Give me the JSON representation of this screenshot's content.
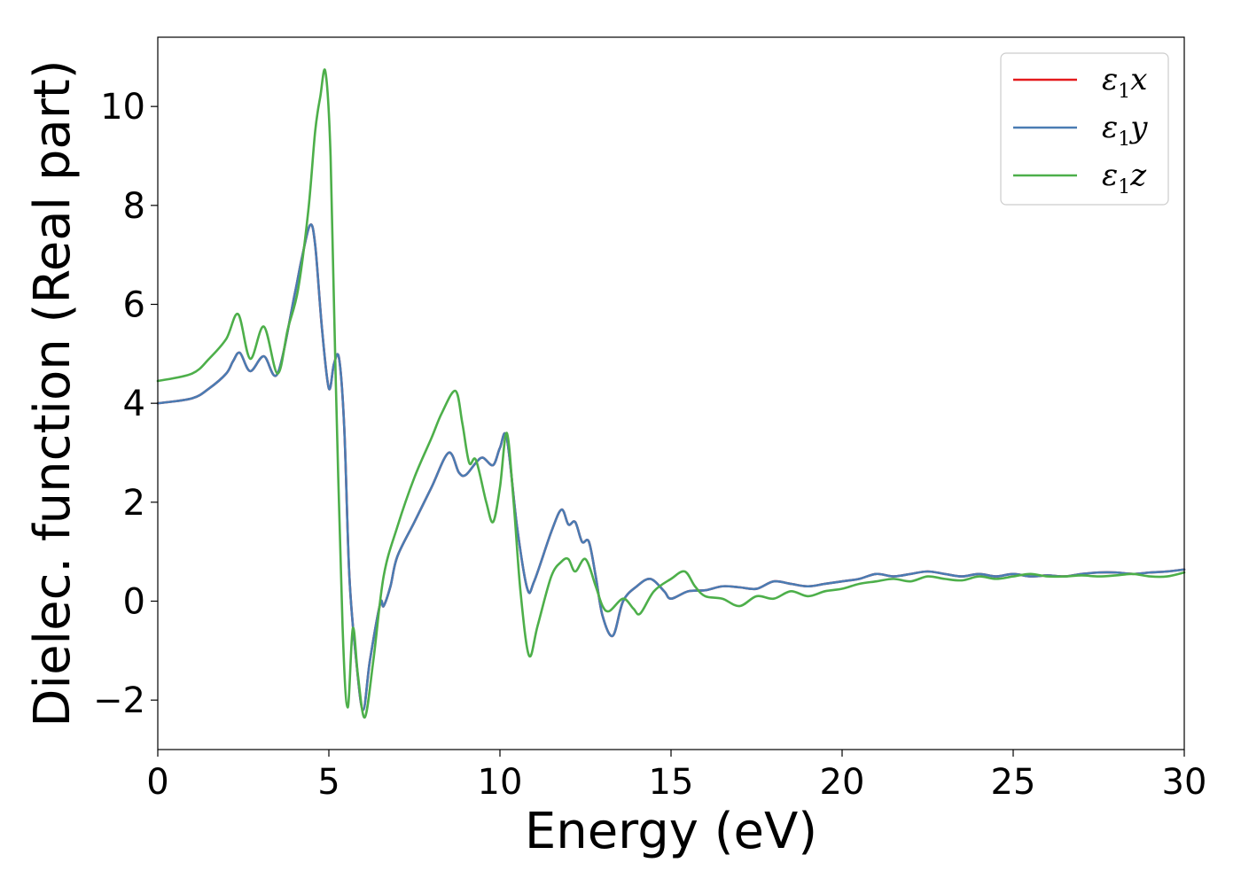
{
  "chart_data": {
    "type": "line",
    "title": "",
    "xlabel": "Energy (eV)",
    "ylabel": "Dielec. function (Real part)",
    "xlim": [
      0,
      30
    ],
    "ylim": [
      -3,
      11.4
    ],
    "xticks": [
      0,
      5,
      10,
      15,
      20,
      25,
      30
    ],
    "yticks": [
      -2,
      0,
      2,
      4,
      6,
      8,
      10
    ],
    "xtick_labels": [
      "0",
      "5",
      "10",
      "15",
      "20",
      "25",
      "30"
    ],
    "ytick_labels": [
      "−2",
      "0",
      "2",
      "4",
      "6",
      "8",
      "10"
    ],
    "grid": false,
    "legend": {
      "position": "top-right"
    },
    "series": [
      {
        "name": "ε₁x",
        "legend_base": "ε",
        "legend_sub": "1",
        "legend_var": "x",
        "color": "#e41a1c",
        "x": [
          0,
          1,
          1.5,
          2,
          2.2,
          2.4,
          2.7,
          3.1,
          3.5,
          4,
          4.2,
          4.45,
          4.6,
          4.8,
          5,
          5.15,
          5.3,
          5.45,
          5.6,
          5.8,
          6,
          6.2,
          6.5,
          6.6,
          6.8,
          7,
          7.5,
          8,
          8.5,
          8.8,
          9,
          9.3,
          9.5,
          9.8,
          10,
          10.2,
          10.5,
          10.8,
          11,
          11.5,
          11.8,
          12,
          12.2,
          12.4,
          12.6,
          12.8,
          13,
          13.3,
          13.6,
          14,
          14.4,
          14.8,
          15,
          15.5,
          16,
          16.5,
          17,
          17.5,
          18,
          18.5,
          19,
          19.5,
          20,
          20.5,
          21,
          21.5,
          22,
          22.5,
          23,
          23.5,
          24,
          24.5,
          25,
          25.5,
          26,
          26.5,
          27,
          27.5,
          28,
          28.5,
          29,
          29.5,
          30
        ],
        "y": [
          4,
          4.1,
          4.3,
          4.6,
          4.85,
          5.02,
          4.65,
          4.95,
          4.6,
          6.2,
          6.9,
          7.6,
          7.2,
          5.5,
          4.3,
          4.8,
          4.9,
          3.5,
          0.5,
          -1.2,
          -2.2,
          -1.2,
          -0.05,
          -0.1,
          0.3,
          0.9,
          1.6,
          2.3,
          3,
          2.6,
          2.55,
          2.8,
          2.9,
          2.75,
          3.1,
          3.3,
          1.5,
          0.25,
          0.4,
          1.4,
          1.85,
          1.55,
          1.6,
          1.2,
          1.2,
          0.5,
          -0.3,
          -0.7,
          0,
          0.3,
          0.45,
          0.2,
          0.05,
          0.2,
          0.22,
          0.3,
          0.28,
          0.25,
          0.4,
          0.35,
          0.3,
          0.35,
          0.4,
          0.45,
          0.55,
          0.5,
          0.55,
          0.6,
          0.55,
          0.5,
          0.55,
          0.5,
          0.55,
          0.5,
          0.52,
          0.5,
          0.55,
          0.58,
          0.58,
          0.55,
          0.58,
          0.6,
          0.64
        ]
      },
      {
        "name": "ε₁y",
        "legend_base": "ε",
        "legend_sub": "1",
        "legend_var": "y",
        "color": "#4a7cb3",
        "x": [
          0,
          1,
          1.5,
          2,
          2.2,
          2.4,
          2.7,
          3.1,
          3.5,
          4,
          4.2,
          4.45,
          4.6,
          4.8,
          5,
          5.15,
          5.3,
          5.45,
          5.6,
          5.8,
          6,
          6.2,
          6.5,
          6.6,
          6.8,
          7,
          7.5,
          8,
          8.5,
          8.8,
          9,
          9.3,
          9.5,
          9.8,
          10,
          10.2,
          10.5,
          10.8,
          11,
          11.5,
          11.8,
          12,
          12.2,
          12.4,
          12.6,
          12.8,
          13,
          13.3,
          13.6,
          14,
          14.4,
          14.8,
          15,
          15.5,
          16,
          16.5,
          17,
          17.5,
          18,
          18.5,
          19,
          19.5,
          20,
          20.5,
          21,
          21.5,
          22,
          22.5,
          23,
          23.5,
          24,
          24.5,
          25,
          25.5,
          26,
          26.5,
          27,
          27.5,
          28,
          28.5,
          29,
          29.5,
          30
        ],
        "y": [
          4,
          4.1,
          4.3,
          4.6,
          4.85,
          5.02,
          4.65,
          4.95,
          4.6,
          6.2,
          6.9,
          7.6,
          7.2,
          5.5,
          4.3,
          4.8,
          4.9,
          3.5,
          0.5,
          -1.2,
          -2.2,
          -1.2,
          -0.05,
          -0.1,
          0.3,
          0.9,
          1.6,
          2.3,
          3,
          2.6,
          2.55,
          2.8,
          2.9,
          2.75,
          3.1,
          3.3,
          1.5,
          0.25,
          0.4,
          1.4,
          1.85,
          1.55,
          1.6,
          1.2,
          1.2,
          0.5,
          -0.3,
          -0.7,
          0,
          0.3,
          0.45,
          0.2,
          0.05,
          0.2,
          0.22,
          0.3,
          0.28,
          0.25,
          0.4,
          0.35,
          0.3,
          0.35,
          0.4,
          0.45,
          0.55,
          0.5,
          0.55,
          0.6,
          0.55,
          0.5,
          0.55,
          0.5,
          0.55,
          0.5,
          0.52,
          0.5,
          0.55,
          0.58,
          0.58,
          0.55,
          0.58,
          0.6,
          0.64
        ]
      },
      {
        "name": "ε₁z",
        "legend_base": "ε",
        "legend_sub": "1",
        "legend_var": "z",
        "color": "#4daf4a",
        "x": [
          0,
          1,
          1.5,
          2,
          2.35,
          2.7,
          3.1,
          3.5,
          3.8,
          4.1,
          4.4,
          4.6,
          4.75,
          4.9,
          5.05,
          5.2,
          5.4,
          5.55,
          5.7,
          5.85,
          6.05,
          6.3,
          6.6,
          7,
          7.5,
          8,
          8.3,
          8.7,
          8.9,
          9.1,
          9.3,
          9.6,
          9.8,
          10,
          10.2,
          10.4,
          10.6,
          10.85,
          11.1,
          11.5,
          11.8,
          12,
          12.2,
          12.5,
          12.8,
          13,
          13.2,
          13.6,
          13.9,
          14.1,
          14.5,
          15,
          15.4,
          15.7,
          16,
          16.5,
          17,
          17.5,
          18,
          18.5,
          19,
          19.5,
          20,
          20.5,
          21,
          21.5,
          22,
          22.5,
          23,
          23.5,
          24,
          24.5,
          25,
          25.5,
          26,
          26.5,
          27,
          27.5,
          28,
          28.5,
          29,
          29.5,
          30
        ],
        "y": [
          4.45,
          4.6,
          4.9,
          5.3,
          5.8,
          4.9,
          5.55,
          4.6,
          5.5,
          6.3,
          7.9,
          9.5,
          10.2,
          10.7,
          9,
          4.5,
          -0.5,
          -2.15,
          -0.55,
          -1.5,
          -2.35,
          -1.2,
          0.5,
          1.5,
          2.5,
          3.3,
          3.8,
          4.25,
          3.6,
          2.8,
          2.85,
          2,
          1.6,
          2.3,
          3.4,
          2,
          0.2,
          -1.1,
          -0.5,
          0.5,
          0.8,
          0.85,
          0.6,
          0.85,
          0.3,
          -0.1,
          -0.2,
          0.05,
          -0.15,
          -0.25,
          0.2,
          0.45,
          0.6,
          0.3,
          0.1,
          0.05,
          -0.1,
          0.1,
          0.05,
          0.2,
          0.1,
          0.2,
          0.25,
          0.35,
          0.4,
          0.45,
          0.4,
          0.5,
          0.45,
          0.42,
          0.5,
          0.45,
          0.5,
          0.55,
          0.5,
          0.5,
          0.52,
          0.5,
          0.52,
          0.55,
          0.5,
          0.5,
          0.58
        ]
      }
    ]
  }
}
